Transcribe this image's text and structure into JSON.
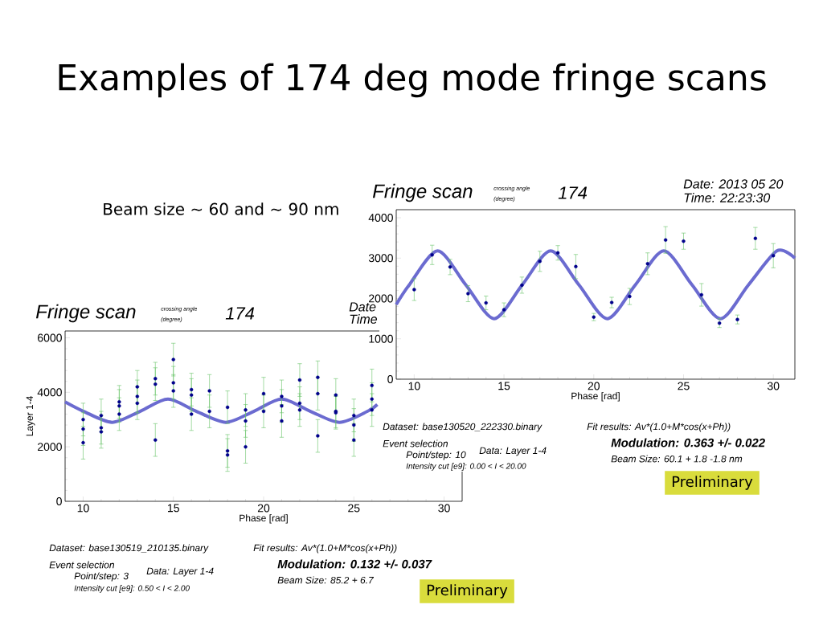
{
  "chart_data": [
    {
      "type": "scatter",
      "title": "Fringe scan",
      "xlabel": "Phase [rad]",
      "xlim": [
        9,
        31.2
      ],
      "ylim": [
        0,
        4200
      ],
      "xticks": [
        10,
        15,
        20,
        25,
        30
      ],
      "yticks": [
        0,
        1000,
        2000,
        3000,
        4000
      ],
      "series": [
        {
          "type": "line",
          "color": "#6b6bd0",
          "x": [
            9,
            9.73,
            11.3,
            12.87,
            14.45,
            16.02,
            17.6,
            19.17,
            20.75,
            22.32,
            23.9,
            25.47,
            27.05,
            28.62,
            30.2,
            31.2
          ],
          "values": [
            1850,
            2340,
            3180,
            2340,
            1500,
            2340,
            3180,
            2340,
            1500,
            2340,
            3180,
            2340,
            1500,
            2340,
            3180,
            3000
          ]
        },
        {
          "color": "#00008b",
          "x": [
            10,
            11,
            12,
            13,
            14,
            15,
            16,
            17,
            18,
            19,
            20,
            21,
            22,
            23,
            24,
            25,
            26,
            27,
            28,
            29,
            30
          ],
          "values": [
            2220,
            3080,
            2780,
            2120,
            1890,
            1720,
            2330,
            2920,
            3130,
            2790,
            1540,
            1900,
            2050,
            2860,
            3450,
            3420,
            2090,
            1390,
            1480,
            3490,
            3060
          ],
          "errors": [
            270,
            240,
            190,
            200,
            170,
            170,
            200,
            250,
            180,
            300,
            90,
            130,
            200,
            270,
            330,
            200,
            280,
            110,
            110,
            270,
            300
          ]
        }
      ],
      "annotations": [
        "Examples of 174 deg mode fringe scans",
        "Beam size ~ 60 and ~ 90 nm",
        "crossing angle",
        "(degree)",
        "174",
        "Date: 2013 05 20",
        "Time: 22:23:30",
        "Dataset: base130520_222330.binary",
        "Fit results: Av*(1.0+M*cos(x+Ph))",
        "Event selection",
        "Point/step: 10",
        "Data: Layer 1-4",
        "Intensity cut [e9]: 0.00 < I < 20.00",
        "Modulation:   0.363 +/- 0.022",
        "Beam Size:   60.1 +   1.8   -1.8 nm",
        "Preliminary"
      ]
    },
    {
      "type": "scatter",
      "title": "Fringe scan",
      "xlabel": "Phase [rad]",
      "ylabel": "Layer 1-4",
      "xlim": [
        9,
        31
      ],
      "ylim": [
        0,
        6250
      ],
      "xticks": [
        10,
        15,
        20,
        25,
        30
      ],
      "yticks": [
        0,
        2000,
        4000,
        6000
      ],
      "series": [
        {
          "type": "line",
          "color": "#6b6bd0",
          "x": [
            9,
            10.03,
            11.6,
            13.15,
            14.7,
            16.28,
            17.9,
            19.45,
            21.0,
            22.6,
            24.2,
            25.75,
            26.3
          ],
          "values": [
            3650,
            3300,
            2900,
            3300,
            3750,
            3300,
            2900,
            3300,
            3750,
            3300,
            2900,
            3300,
            3550
          ]
        },
        {
          "color": "#00008b",
          "x": [
            10,
            10,
            10,
            11,
            11,
            11,
            12,
            12,
            12,
            13,
            13,
            13,
            14,
            14,
            14,
            15,
            15,
            15,
            16,
            16,
            16,
            17,
            17,
            18,
            18,
            18,
            19,
            19,
            19,
            20,
            20,
            21,
            21,
            21,
            22,
            22,
            22,
            23,
            23,
            23,
            24,
            24,
            24,
            25,
            25,
            25,
            26,
            26,
            26
          ],
          "values": [
            3000,
            2650,
            2150,
            3150,
            2700,
            2550,
            3650,
            3500,
            3200,
            4200,
            3850,
            3600,
            4500,
            4300,
            2250,
            5200,
            4350,
            4050,
            4100,
            3900,
            3200,
            4050,
            3300,
            3450,
            1850,
            1700,
            3350,
            2950,
            2000,
            3950,
            3300,
            3850,
            3500,
            2950,
            4450,
            3600,
            3350,
            4550,
            3950,
            2400,
            3900,
            3300,
            3250,
            3150,
            2800,
            2250,
            4250,
            3750,
            3350
          ],
          "errors": [
            600,
            600,
            600,
            600,
            600,
            600,
            600,
            600,
            600,
            600,
            600,
            600,
            600,
            600,
            600,
            600,
            600,
            600,
            600,
            600,
            600,
            600,
            600,
            600,
            600,
            600,
            600,
            600,
            600,
            600,
            600,
            600,
            600,
            600,
            600,
            600,
            600,
            600,
            600,
            600,
            600,
            600,
            600,
            600,
            600,
            600,
            600,
            600,
            600
          ]
        }
      ],
      "annotations": [
        "crossing angle",
        "(degree)",
        "174",
        "Date",
        "Time",
        "Dataset: base130519_210135.binary",
        "Fit results: Av*(1.0+M*cos(x+Ph))",
        "Event selection",
        "Point/step: 3",
        "Data: Layer 1-4",
        "Intensity cut [e9]: 0.50 < I < 2.00",
        "Modulation:   0.132 +/- 0.037",
        "Beam Size:   85.2 +   6.7",
        "Preliminary"
      ]
    }
  ]
}
